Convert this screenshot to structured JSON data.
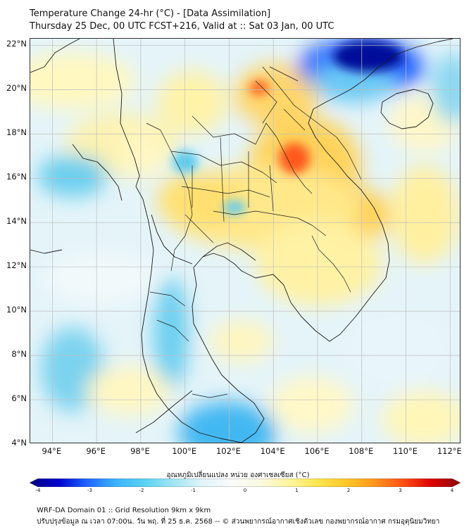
{
  "header": {
    "title": "Temperature Change 24-hr (°C) - [Data Assimilation]",
    "subtitle": "Thursday 25 Dec, 00 UTC FCST+216, Valid at :: Sat 03 Jan, 00 UTC"
  },
  "map": {
    "lat_labels": [
      "22°N",
      "20°N",
      "18°N",
      "16°N",
      "14°N",
      "12°N",
      "10°N",
      "8°N",
      "6°N",
      "4°N"
    ],
    "lon_labels": [
      "94°E",
      "96°E",
      "98°E",
      "100°E",
      "102°E",
      "104°E",
      "106°E",
      "108°E",
      "110°E",
      "112°E"
    ],
    "lat_range": [
      4,
      22.3
    ],
    "lon_range": [
      93,
      112.5
    ],
    "grid_color": "#bdbdbd",
    "coastline_color": "#1a1a1a"
  },
  "colorbar": {
    "label": "อุณหภูมิเปลี่ยนแปลง หน่วย องศาเซลเซียส (°C)",
    "tick_labels": [
      "-4",
      "-3",
      "-2",
      "-1",
      "0",
      "1",
      "2",
      "3",
      "4"
    ],
    "range": [
      -4,
      4
    ],
    "colors": [
      "#000080",
      "#0000cd",
      "#1e64ff",
      "#3cb4ff",
      "#5ad2f0",
      "#a0e6f5",
      "#e0f4fa",
      "#fafafa",
      "#fafae1",
      "#fff5a0",
      "#ffe650",
      "#ffc828",
      "#ff961e",
      "#ff5014",
      "#dc0000",
      "#8c0000"
    ]
  },
  "footer": {
    "line1": "WRF-DA Domain 01 :: Grid Resolution 9km x 9km",
    "line2": "ปรับปรุงข้อมูล ณ เวลา 07:00น. วัน พฤ. ที่ 25 ธ.ค. 2568 -- © ส่วนพยากรณ์อากาศเชิงตัวเลข กองพยากรณ์อากาศ กรมอุตุนิยมวิทยา"
  }
}
